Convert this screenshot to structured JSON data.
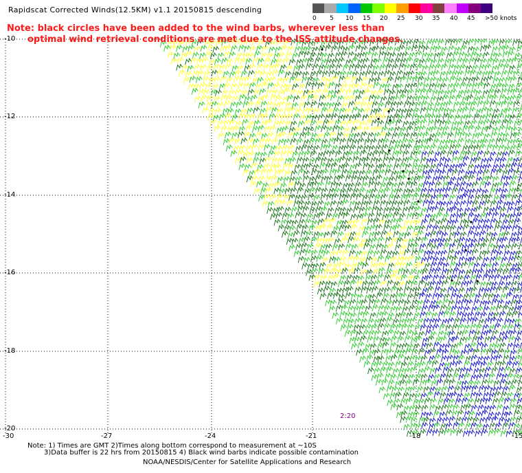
{
  "title": "Rapidscat Corrected Winds(12.5KM) v1.1 20150815 descending",
  "note_line1": "Note: black circles have been added to the wind barbs, wherever less than",
  "note_line2": "optimal wind retrieval conditions are met due to the ISS attitude changes.",
  "legend": {
    "labels": [
      "0",
      "5",
      "10",
      "15",
      "20",
      "25",
      "30",
      "35",
      "40",
      "45",
      ">50 knots"
    ],
    "colors": [
      "#555555",
      "#aaaaaa",
      "#00c8ff",
      "#0064ff",
      "#00c800",
      "#80ff00",
      "#ffff00",
      "#ffa000",
      "#ff0000",
      "#ff00a0",
      "#804040",
      "#ff80ff",
      "#c000ff",
      "#800080",
      "#400080"
    ]
  },
  "map": {
    "lat_labels": [
      "-10",
      "-12",
      "-14",
      "-16",
      "-18",
      "-20"
    ],
    "lon_labels": [
      "-30",
      "-27",
      "-24",
      "-21",
      "-18",
      "-15"
    ],
    "time_tag": "2:20",
    "barb_colors": {
      "light": "#ffff33",
      "medium": "#227722",
      "bright": "#33cc33",
      "strong": "#1a1acc",
      "flag": "#000000"
    }
  },
  "footer": {
    "line1": "Note: 1) Times are GMT 2)Times along bottom correspond to measurement at ~10S",
    "line2": "3)Data buffer is 22 hrs from 20150815 4) Black wind barbs indicate possible contamination",
    "line3": "NOAA/NESDIS/Center for Satellite Applications and Research"
  }
}
